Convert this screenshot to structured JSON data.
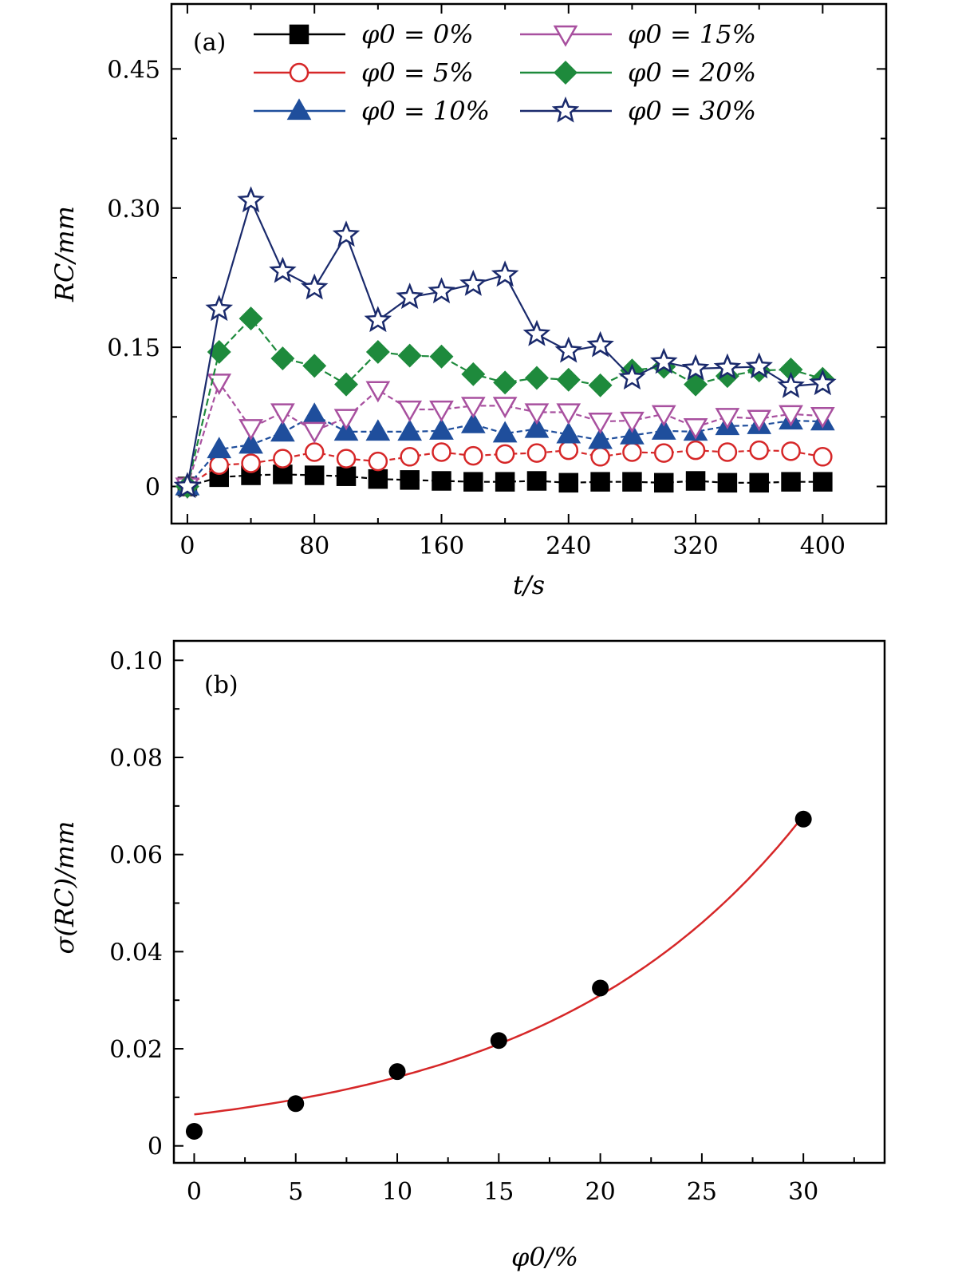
{
  "chart_data": [
    {
      "type": "line",
      "panel_label": "(a)",
      "xlabel": "t/s",
      "ylabel": "RC/mm",
      "xlim": [
        -10,
        440
      ],
      "ylim": [
        -0.04,
        0.52
      ],
      "x_ticks": [
        0,
        80,
        160,
        240,
        320,
        400
      ],
      "x_tick_labels": [
        "0",
        "80",
        "160",
        "240",
        "320",
        "400"
      ],
      "y_ticks": [
        0,
        0.15,
        0.3,
        0.45
      ],
      "y_tick_labels": [
        "0",
        "0.15",
        "0.30",
        "0.45"
      ],
      "grid": false,
      "legend_position": "top",
      "x": [
        0,
        20,
        40,
        60,
        80,
        100,
        120,
        140,
        160,
        180,
        200,
        220,
        240,
        260,
        280,
        300,
        320,
        340,
        360,
        380,
        400
      ],
      "series": [
        {
          "name": "φ0 = 0%",
          "color": "#000000",
          "marker": "square",
          "filled": true,
          "values": [
            0,
            0.01,
            0.012,
            0.013,
            0.012,
            0.011,
            0.008,
            0.007,
            0.006,
            0.005,
            0.005,
            0.006,
            0.004,
            0.005,
            0.005,
            0.004,
            0.006,
            0.004,
            0.004,
            0.005,
            0.005
          ]
        },
        {
          "name": "φ0 = 5%",
          "color": "#d62728",
          "marker": "circle",
          "filled": false,
          "values": [
            0,
            0.023,
            0.025,
            0.03,
            0.037,
            0.03,
            0.027,
            0.032,
            0.037,
            0.033,
            0.035,
            0.036,
            0.039,
            0.032,
            0.037,
            0.036,
            0.039,
            0.037,
            0.039,
            0.038,
            0.032
          ]
        },
        {
          "name": "φ0 = 10%",
          "color": "#1f4e9c",
          "marker": "triangle-up",
          "filled": true,
          "values": [
            0,
            0.04,
            0.045,
            0.058,
            0.077,
            0.059,
            0.059,
            0.059,
            0.06,
            0.067,
            0.057,
            0.062,
            0.056,
            0.05,
            0.055,
            0.06,
            0.059,
            0.065,
            0.066,
            0.071,
            0.07
          ]
        },
        {
          "name": "φ0 = 15%",
          "color": "#a8509f",
          "marker": "triangle-down",
          "filled": false,
          "values": [
            0,
            0.112,
            0.063,
            0.08,
            0.06,
            0.074,
            0.104,
            0.083,
            0.083,
            0.087,
            0.087,
            0.08,
            0.08,
            0.07,
            0.071,
            0.078,
            0.064,
            0.075,
            0.073,
            0.078,
            0.076
          ]
        },
        {
          "name": "φ0 = 20%",
          "color": "#1e8a3c",
          "marker": "diamond",
          "filled": true,
          "values": [
            0,
            0.145,
            0.181,
            0.138,
            0.13,
            0.11,
            0.145,
            0.141,
            0.14,
            0.121,
            0.112,
            0.117,
            0.115,
            0.109,
            0.125,
            0.129,
            0.11,
            0.119,
            0.125,
            0.126,
            0.116
          ]
        },
        {
          "name": "φ0 = 30%",
          "color": "#1a2a6c",
          "marker": "star",
          "filled": false,
          "values": [
            0,
            0.191,
            0.308,
            0.232,
            0.214,
            0.271,
            0.179,
            0.204,
            0.21,
            0.218,
            0.228,
            0.164,
            0.146,
            0.152,
            0.117,
            0.134,
            0.127,
            0.128,
            0.129,
            0.108,
            0.111
          ]
        }
      ]
    },
    {
      "type": "scatter",
      "panel_label": "(b)",
      "xlabel": "φ0/%",
      "ylabel": "σ(RC)/mm",
      "xlim": [
        -1,
        34
      ],
      "ylim": [
        -0.0035,
        0.104
      ],
      "x_ticks": [
        0,
        5,
        10,
        15,
        20,
        25,
        30
      ],
      "x_tick_labels": [
        "0",
        "5",
        "10",
        "15",
        "20",
        "25",
        "30"
      ],
      "y_ticks": [
        0,
        0.02,
        0.04,
        0.06,
        0.08,
        0.1
      ],
      "y_tick_labels": [
        "0",
        "0.02",
        "0.04",
        "0.06",
        "0.08",
        "0.10"
      ],
      "grid": false,
      "points": {
        "x": [
          0,
          5,
          10,
          15,
          20,
          30
        ],
        "y": [
          0.003,
          0.0087,
          0.0153,
          0.0217,
          0.0325,
          0.0673
        ],
        "color": "#000000"
      },
      "fit": {
        "color": "#d62728",
        "form": "exponential",
        "a": 0.00647,
        "b": 0.0784,
        "x_range": [
          0,
          30
        ]
      }
    }
  ]
}
